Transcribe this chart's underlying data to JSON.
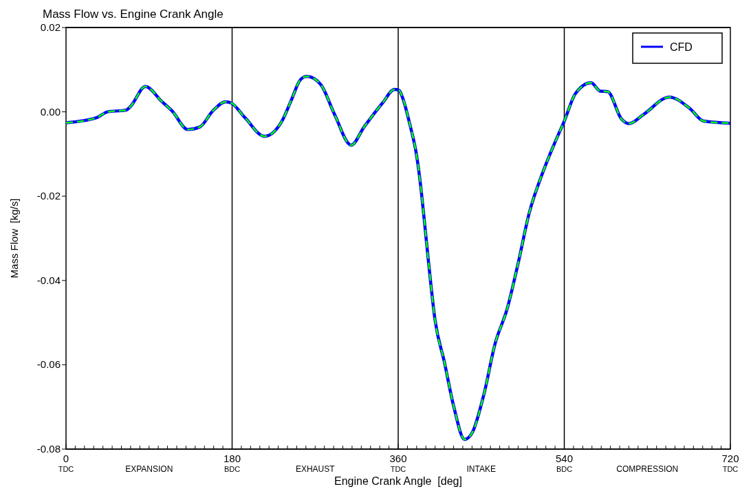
{
  "chart_data": {
    "type": "line",
    "title": "Mass Flow vs. Engine Crank Angle",
    "xlabel": "Engine Crank Angle  [deg]",
    "ylabel": "Mass Flow  [kg/s]",
    "xlim": [
      0,
      720
    ],
    "ylim": [
      -0.08,
      0.02
    ],
    "xticks": [
      0,
      {
        "value": 10,
        "label": null
      },
      {
        "value": 20,
        "label": null
      },
      {
        "value": 30,
        "label": null
      },
      {
        "value": 40,
        "label": null
      },
      {
        "value": 50,
        "label": null
      },
      {
        "value": 60,
        "label": null
      },
      {
        "value": 70,
        "label": null
      },
      {
        "value": 80,
        "label": null
      },
      {
        "value": 90,
        "label": null
      },
      {
        "value": 100,
        "label": null
      },
      {
        "value": 110,
        "label": null
      },
      {
        "value": 120,
        "label": null
      },
      {
        "value": 130,
        "label": null
      },
      {
        "value": 140,
        "label": null
      },
      {
        "value": 150,
        "label": null
      },
      {
        "value": 160,
        "label": null
      },
      {
        "value": 170,
        "label": null
      },
      180,
      {
        "value": 190,
        "label": null
      },
      {
        "value": 200,
        "label": null
      },
      {
        "value": 210,
        "label": null
      },
      {
        "value": 220,
        "label": null
      },
      {
        "value": 230,
        "label": null
      },
      {
        "value": 240,
        "label": null
      },
      {
        "value": 250,
        "label": null
      },
      {
        "value": 260,
        "label": null
      },
      {
        "value": 270,
        "label": null
      },
      {
        "value": 280,
        "label": null
      },
      {
        "value": 290,
        "label": null
      },
      {
        "value": 300,
        "label": null
      },
      {
        "value": 310,
        "label": null
      },
      {
        "value": 320,
        "label": null
      },
      {
        "value": 330,
        "label": null
      },
      {
        "value": 340,
        "label": null
      },
      {
        "value": 350,
        "label": null
      },
      360,
      {
        "value": 370,
        "label": null
      },
      {
        "value": 380,
        "label": null
      },
      {
        "value": 390,
        "label": null
      },
      {
        "value": 400,
        "label": null
      },
      {
        "value": 410,
        "label": null
      },
      {
        "value": 420,
        "label": null
      },
      {
        "value": 430,
        "label": null
      },
      {
        "value": 440,
        "label": null
      },
      {
        "value": 450,
        "label": null
      },
      {
        "value": 460,
        "label": null
      },
      {
        "value": 470,
        "label": null
      },
      {
        "value": 480,
        "label": null
      },
      {
        "value": 490,
        "label": null
      },
      {
        "value": 500,
        "label": null
      },
      {
        "value": 510,
        "label": null
      },
      {
        "value": 520,
        "label": null
      },
      {
        "value": 530,
        "label": null
      },
      540,
      {
        "value": 550,
        "label": null
      },
      {
        "value": 560,
        "label": null
      },
      {
        "value": 570,
        "label": null
      },
      {
        "value": 580,
        "label": null
      },
      {
        "value": 590,
        "label": null
      },
      {
        "value": 600,
        "label": null
      },
      {
        "value": 610,
        "label": null
      },
      {
        "value": 620,
        "label": null
      },
      {
        "value": 630,
        "label": null
      },
      {
        "value": 640,
        "label": null
      },
      {
        "value": 650,
        "label": null
      },
      {
        "value": 660,
        "label": null
      },
      {
        "value": 670,
        "label": null
      },
      {
        "value": 680,
        "label": null
      },
      {
        "value": 690,
        "label": null
      },
      {
        "value": 700,
        "label": null
      },
      {
        "value": 710,
        "label": null
      },
      720
    ],
    "yticks": [
      {
        "value": 0.02,
        "label": "0.02"
      },
      {
        "value": 0,
        "label": "0.00"
      },
      {
        "value": -0.02,
        "label": "-0.02"
      },
      {
        "value": -0.04,
        "label": "-0.04"
      },
      {
        "value": -0.06,
        "label": "-0.06"
      },
      {
        "value": -0.08,
        "label": "-0.08"
      }
    ],
    "grid": false,
    "legend": "top right",
    "marker": "none",
    "ref_lines": [
      {
        "axis": "x",
        "value": 180,
        "label": "BDC",
        "color": "#000000"
      },
      {
        "axis": "x",
        "value": 360,
        "label": "TDC",
        "color": "#000000"
      },
      {
        "axis": "x",
        "value": 540,
        "label": "BDC",
        "color": "#000000"
      }
    ],
    "annotations": [
      "TDC",
      "EXPANSION",
      "EXHAUST",
      "INTAKE",
      "COMPRESSION",
      "TDC"
    ],
    "x": [
      0,
      33,
      45,
      65,
      70,
      86,
      104,
      115,
      132,
      145,
      159,
      173,
      179,
      194,
      215,
      234,
      244,
      254,
      261,
      276,
      291,
      309,
      323,
      343,
      356,
      361,
      364,
      373,
      380,
      384,
      388,
      393,
      400,
      410,
      420,
      432,
      440,
      453,
      465,
      478,
      490,
      502,
      517,
      529,
      540,
      552,
      569,
      579,
      587,
      602,
      610,
      626,
      654,
      676,
      691,
      720
    ],
    "series": [
      {
        "name": "CFD",
        "color": "#0000ff",
        "line_style": "solid",
        "values": [
          -0.0026,
          -0.0014,
          0.0,
          0.0004,
          0.0013,
          0.006,
          0.0024,
          0.0002,
          -0.0042,
          -0.0036,
          0.0002,
          0.0024,
          0.0021,
          -0.0014,
          -0.0058,
          -0.0022,
          0.0027,
          0.0076,
          0.0084,
          0.0065,
          -0.0006,
          -0.0079,
          -0.0036,
          0.0021,
          0.0053,
          0.0051,
          0.0038,
          -0.0033,
          -0.0104,
          -0.0169,
          -0.0251,
          -0.0359,
          -0.0495,
          -0.0593,
          -0.0697,
          -0.0777,
          -0.0762,
          -0.0669,
          -0.055,
          -0.0468,
          -0.0359,
          -0.024,
          -0.0142,
          -0.0077,
          -0.0022,
          0.0043,
          0.0069,
          0.0049,
          0.0048,
          -0.0017,
          -0.0028,
          -0.0006,
          0.0035,
          0.0008,
          -0.0022,
          -0.0027
        ]
      },
      {
        "color": "#00ff00",
        "line_style": "dashed",
        "values": [
          -0.0026,
          -0.0014,
          0.0,
          0.0004,
          0.0013,
          0.006,
          0.0024,
          0.0002,
          -0.0042,
          -0.0036,
          0.0002,
          0.0024,
          0.0021,
          -0.0014,
          -0.0058,
          -0.0022,
          0.0027,
          0.0076,
          0.0084,
          0.0065,
          -0.0006,
          -0.0079,
          -0.0036,
          0.0021,
          0.0053,
          0.0051,
          0.0038,
          -0.0033,
          -0.0104,
          -0.0169,
          -0.0251,
          -0.0359,
          -0.0495,
          -0.0593,
          -0.0697,
          -0.0777,
          -0.0762,
          -0.0669,
          -0.055,
          -0.0468,
          -0.0359,
          -0.024,
          -0.0142,
          -0.0077,
          -0.0022,
          0.0043,
          0.0069,
          0.0049,
          0.0048,
          -0.0017,
          -0.0028,
          -0.0006,
          0.0035,
          0.0008,
          -0.0022,
          -0.0027
        ]
      }
    ]
  }
}
